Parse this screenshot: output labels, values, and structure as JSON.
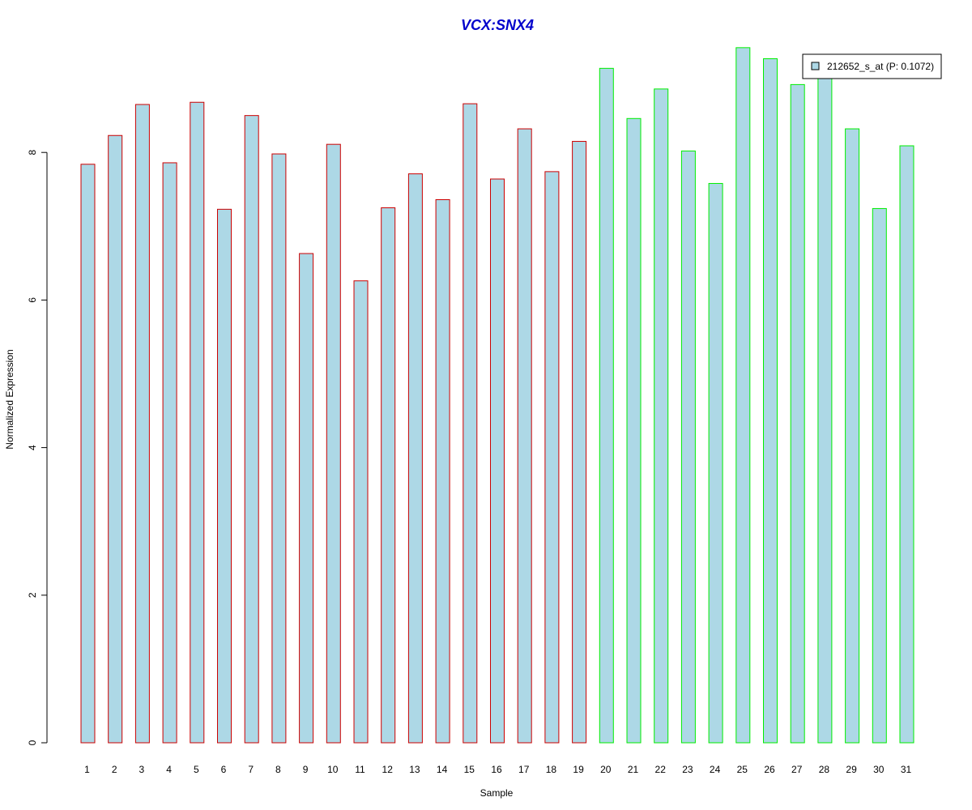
{
  "chart_data": {
    "type": "bar",
    "title": "VCX:SNX4",
    "xlabel": "Sample",
    "ylabel": "Normalized Expression",
    "ylim": [
      0,
      9.6
    ],
    "yticks": [
      "0",
      "2",
      "4",
      "6",
      "8"
    ],
    "categories": [
      "1",
      "2",
      "3",
      "4",
      "5",
      "6",
      "7",
      "8",
      "9",
      "10",
      "11",
      "12",
      "13",
      "14",
      "15",
      "16",
      "17",
      "18",
      "19",
      "20",
      "21",
      "22",
      "23",
      "24",
      "25",
      "26",
      "27",
      "28",
      "29",
      "30",
      "31"
    ],
    "values": [
      7.84,
      8.23,
      8.65,
      7.86,
      8.68,
      7.23,
      8.5,
      7.98,
      6.63,
      8.11,
      6.26,
      7.25,
      7.71,
      7.36,
      8.66,
      7.64,
      8.32,
      7.74,
      8.15,
      9.14,
      8.46,
      8.86,
      8.02,
      7.58,
      9.42,
      9.27,
      8.92,
      9.01,
      8.32,
      7.24,
      8.09
    ],
    "groups": [
      1,
      1,
      1,
      1,
      1,
      1,
      1,
      1,
      1,
      1,
      1,
      1,
      1,
      1,
      1,
      1,
      1,
      1,
      1,
      2,
      2,
      2,
      2,
      2,
      2,
      2,
      2,
      2,
      2,
      2,
      2
    ],
    "legend": {
      "position": "top-right",
      "entries": [
        {
          "label": "212652_s_at (P: 0.1072)"
        }
      ]
    },
    "grid": false
  },
  "colors": {
    "title": "#0000cc",
    "bar_fill": "#add8e6",
    "group1_border": "#cc0000",
    "group2_border": "#00ee00",
    "axis": "#000000"
  }
}
